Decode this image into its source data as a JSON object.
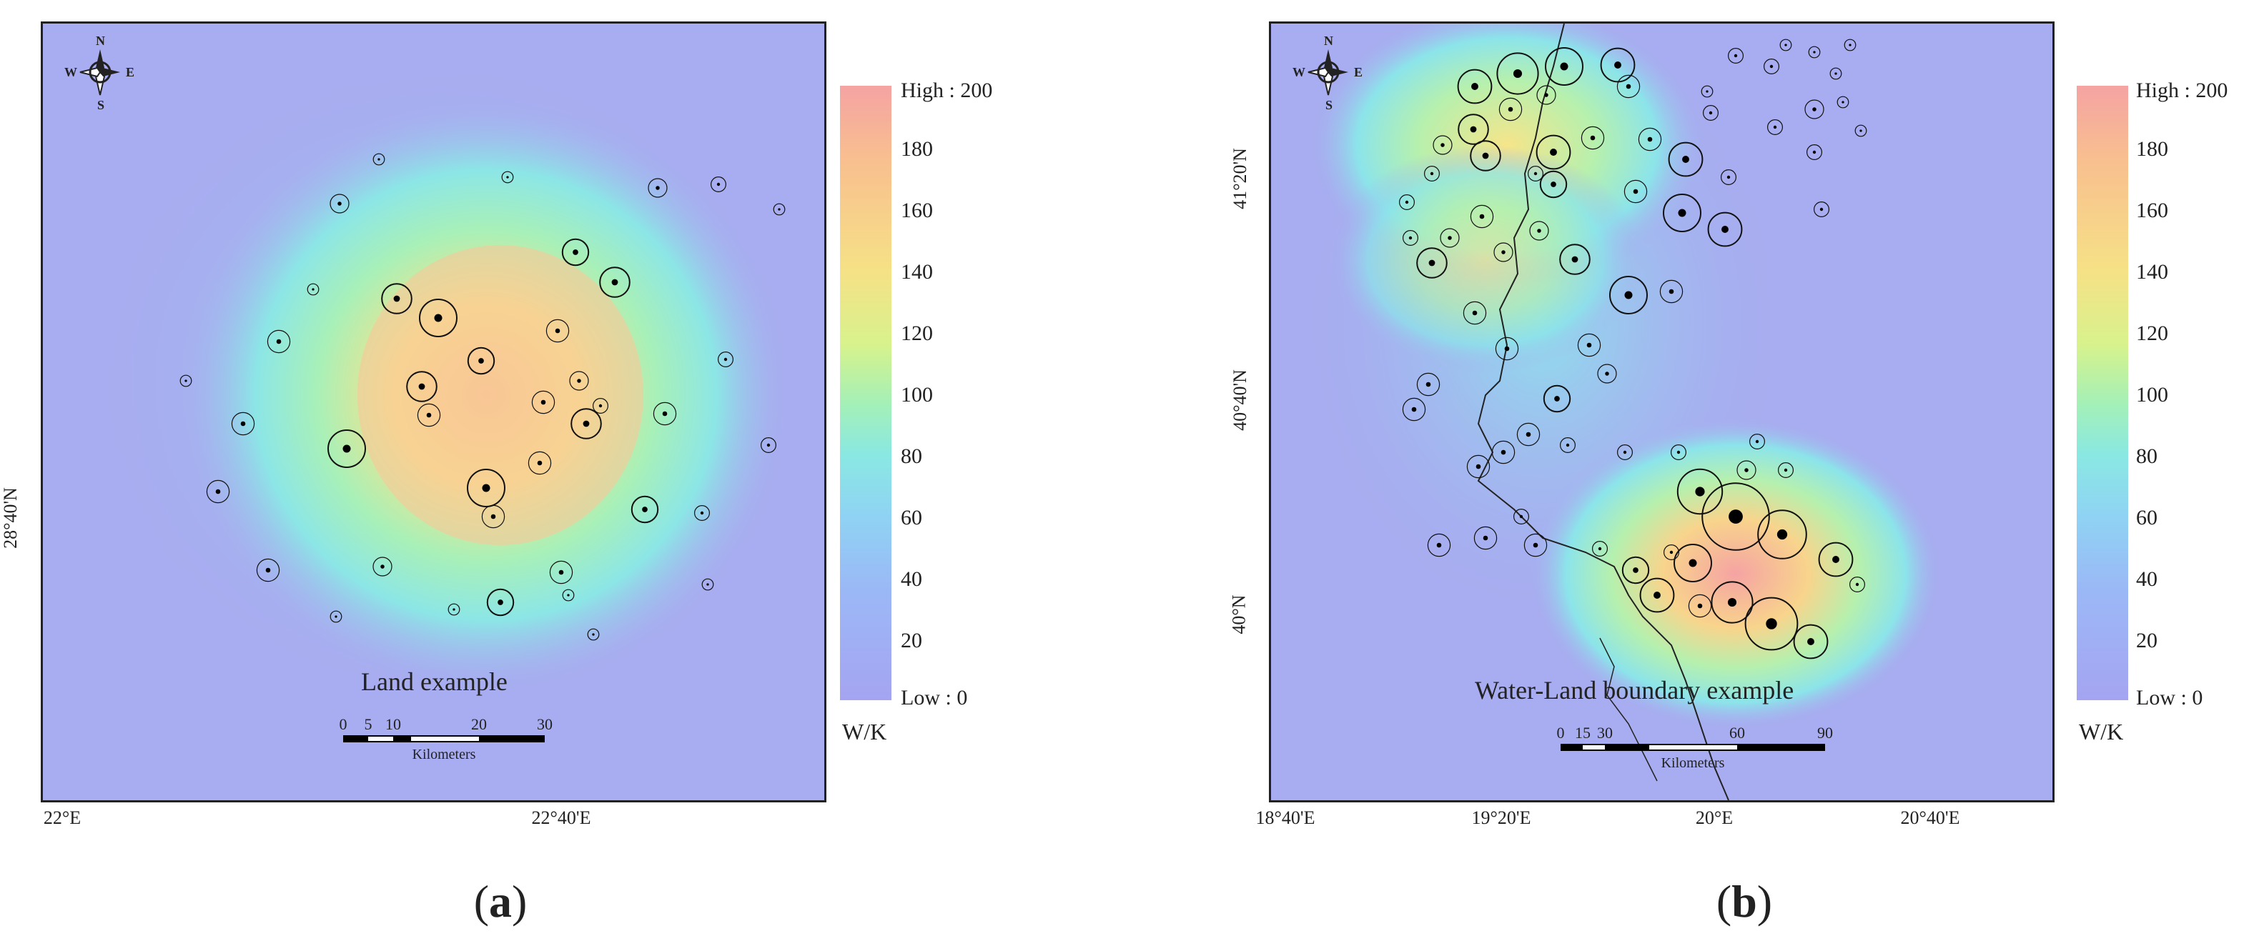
{
  "panels": [
    {
      "id": "a",
      "map_title": "Land example",
      "caption_letter": "a",
      "lat_labels": [
        "28°40'N"
      ],
      "lon_labels": [
        "22°E",
        "22°40'E"
      ],
      "legend": {
        "high": "High : 200",
        "low": "Low : 0",
        "ticks": [
          "180",
          "160",
          "140",
          "120",
          "100",
          "80",
          "60",
          "40",
          "20"
        ],
        "unit": "W/K"
      },
      "scalebar": {
        "ticks": [
          "0",
          "5",
          "10",
          "20",
          "30"
        ],
        "unit": "Kilometers"
      },
      "compass": {
        "n": "N",
        "s": "S",
        "e": "E",
        "w": "W"
      }
    },
    {
      "id": "b",
      "map_title": "Water-Land boundary example",
      "caption_letter": "b",
      "lat_labels": [
        "41°20'N",
        "40°40'N",
        "40°N"
      ],
      "lon_labels": [
        "18°40'E",
        "19°20'E",
        "20°E",
        "20°40'E"
      ],
      "legend": {
        "high": "High : 200",
        "low": "Low : 0",
        "ticks": [
          "180",
          "160",
          "140",
          "120",
          "100",
          "80",
          "60",
          "40",
          "20"
        ],
        "unit": "W/K"
      },
      "scalebar": {
        "ticks": [
          "0",
          "15",
          "30",
          "60",
          "90"
        ],
        "unit": "Kilometers"
      },
      "compass": {
        "n": "N",
        "s": "S",
        "e": "E",
        "w": "W"
      }
    }
  ],
  "colors": {
    "low": "#a5a4f2",
    "mid": "#8ae8e2",
    "high": "#f5a3a3",
    "frame": "#222222"
  }
}
